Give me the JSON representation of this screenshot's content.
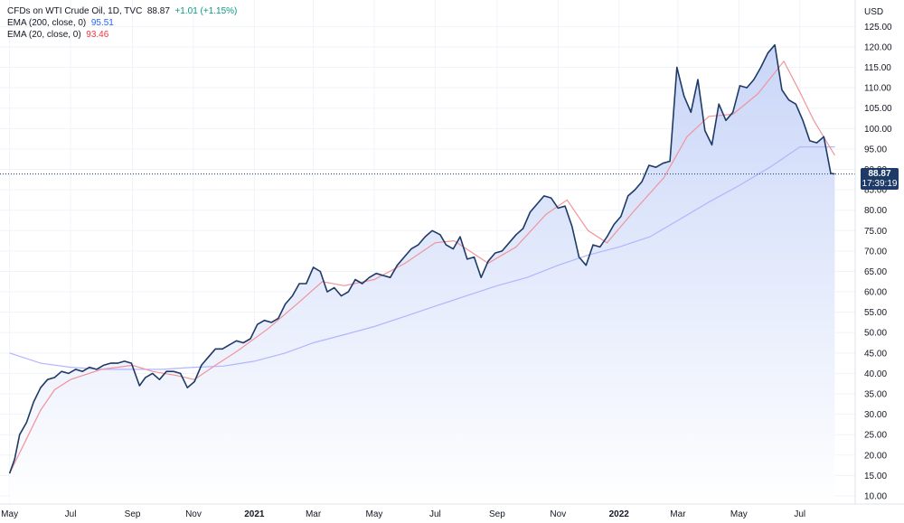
{
  "legend": {
    "symbol": "CFDs on WTI Crude Oil, 1D, TVC",
    "last": "88.87",
    "change": "+1.01 (+1.15%)",
    "ema200_label": "EMA (200, close, 0)",
    "ema200_value": "95.51",
    "ema20_label": "EMA (20, close, 0)",
    "ema20_value": "93.46"
  },
  "price_label": {
    "price": "88.87",
    "time": "17:39:19"
  },
  "colors": {
    "price_line": "#1e3a66",
    "area_top": "#c9d6f8",
    "area_bottom": "#ffffff",
    "ema200": "#b2b5ff",
    "ema20": "#f1949b",
    "grid": "#f0f3fa",
    "last_price_line": "#1e3a66"
  },
  "chart_data": {
    "type": "line",
    "title": "CFDs on WTI Crude Oil, 1D, TVC",
    "ylabel": "USD",
    "ylim": [
      8,
      131.5
    ],
    "y_ticks": [
      "10.00",
      "15.00",
      "20.00",
      "25.00",
      "30.00",
      "35.00",
      "40.00",
      "45.00",
      "50.00",
      "55.00",
      "60.00",
      "65.00",
      "70.00",
      "75.00",
      "80.00",
      "85.00",
      "90.00",
      "95.00",
      "100.00",
      "105.00",
      "110.00",
      "115.00",
      "120.00",
      "125.00"
    ],
    "x_ticks": [
      {
        "label": "May",
        "x": "2020-05",
        "year": false
      },
      {
        "label": "Jul",
        "x": "2020-07",
        "year": false
      },
      {
        "label": "Sep",
        "x": "2020-09",
        "year": false
      },
      {
        "label": "Nov",
        "x": "2020-11",
        "year": false
      },
      {
        "label": "2021",
        "x": "2021-01",
        "year": true
      },
      {
        "label": "Mar",
        "x": "2021-03",
        "year": false
      },
      {
        "label": "May",
        "x": "2021-05",
        "year": false
      },
      {
        "label": "Jul",
        "x": "2021-07",
        "year": false
      },
      {
        "label": "Sep",
        "x": "2021-09",
        "year": false
      },
      {
        "label": "Nov",
        "x": "2021-11",
        "year": false
      },
      {
        "label": "2022",
        "x": "2022-01",
        "year": true
      },
      {
        "label": "Mar",
        "x": "2022-03",
        "year": false
      },
      {
        "label": "May",
        "x": "2022-05",
        "year": false
      },
      {
        "label": "Jul",
        "x": "2022-07",
        "year": false
      }
    ],
    "series": [
      {
        "name": "CFDs on WTI Crude Oil",
        "x": [
          "2020-05-01",
          "2020-05-06",
          "2020-05-11",
          "2020-05-18",
          "2020-05-25",
          "2020-06-01",
          "2020-06-08",
          "2020-06-15",
          "2020-06-22",
          "2020-06-29",
          "2020-07-06",
          "2020-07-13",
          "2020-07-20",
          "2020-07-27",
          "2020-08-03",
          "2020-08-10",
          "2020-08-17",
          "2020-08-24",
          "2020-08-31",
          "2020-09-08",
          "2020-09-14",
          "2020-09-21",
          "2020-09-28",
          "2020-10-05",
          "2020-10-12",
          "2020-10-19",
          "2020-10-26",
          "2020-11-02",
          "2020-11-09",
          "2020-11-16",
          "2020-11-23",
          "2020-11-30",
          "2020-12-07",
          "2020-12-14",
          "2020-12-21",
          "2020-12-28",
          "2021-01-04",
          "2021-01-11",
          "2021-01-18",
          "2021-01-25",
          "2021-02-01",
          "2021-02-08",
          "2021-02-15",
          "2021-02-22",
          "2021-03-01",
          "2021-03-08",
          "2021-03-15",
          "2021-03-22",
          "2021-03-29",
          "2021-04-05",
          "2021-04-12",
          "2021-04-19",
          "2021-04-26",
          "2021-05-03",
          "2021-05-10",
          "2021-05-17",
          "2021-05-24",
          "2021-05-31",
          "2021-06-07",
          "2021-06-14",
          "2021-06-21",
          "2021-06-28",
          "2021-07-06",
          "2021-07-12",
          "2021-07-19",
          "2021-07-26",
          "2021-08-02",
          "2021-08-09",
          "2021-08-16",
          "2021-08-23",
          "2021-08-30",
          "2021-09-06",
          "2021-09-13",
          "2021-09-20",
          "2021-09-27",
          "2021-10-04",
          "2021-10-11",
          "2021-10-18",
          "2021-10-25",
          "2021-11-01",
          "2021-11-08",
          "2021-11-15",
          "2021-11-22",
          "2021-11-29",
          "2021-12-06",
          "2021-12-13",
          "2021-12-20",
          "2021-12-27",
          "2022-01-03",
          "2022-01-10",
          "2022-01-17",
          "2022-01-24",
          "2022-01-31",
          "2022-02-07",
          "2022-02-14",
          "2022-02-21",
          "2022-02-28",
          "2022-03-07",
          "2022-03-14",
          "2022-03-21",
          "2022-03-28",
          "2022-04-04",
          "2022-04-11",
          "2022-04-18",
          "2022-04-25",
          "2022-05-02",
          "2022-05-09",
          "2022-05-16",
          "2022-05-23",
          "2022-05-30",
          "2022-06-06",
          "2022-06-13",
          "2022-06-20",
          "2022-06-27",
          "2022-07-04",
          "2022-07-11",
          "2022-07-18",
          "2022-07-25",
          "2022-08-01",
          "2022-08-05"
        ],
        "y": [
          15.5,
          19.0,
          25.0,
          28.0,
          33.0,
          36.5,
          38.5,
          39.0,
          40.5,
          40.0,
          41.0,
          40.5,
          41.5,
          41.0,
          42.0,
          42.5,
          42.5,
          43.0,
          42.5,
          37.0,
          39.0,
          40.0,
          38.5,
          40.5,
          40.5,
          40.0,
          36.5,
          38.0,
          42.0,
          44.0,
          46.0,
          46.0,
          47.0,
          48.0,
          47.5,
          48.5,
          52.0,
          53.0,
          52.5,
          53.5,
          57.0,
          59.0,
          62.0,
          62.0,
          66.0,
          65.0,
          60.0,
          61.0,
          59.0,
          60.0,
          63.0,
          62.0,
          63.5,
          64.5,
          64.0,
          63.5,
          66.5,
          68.5,
          70.5,
          71.5,
          73.5,
          75.0,
          74.0,
          71.5,
          70.5,
          73.5,
          68.0,
          68.5,
          63.5,
          67.5,
          69.5,
          70.0,
          72.0,
          74.0,
          75.5,
          79.5,
          81.5,
          83.5,
          83.0,
          80.5,
          81.0,
          76.0,
          68.5,
          66.5,
          71.5,
          71.0,
          73.5,
          76.5,
          78.5,
          83.5,
          85.0,
          87.0,
          91.0,
          90.5,
          91.5,
          92.0,
          115.0,
          108.0,
          104.0,
          112.0,
          99.5,
          96.0,
          106.0,
          102.0,
          104.0,
          110.5,
          110.0,
          112.0,
          115.0,
          118.5,
          120.5,
          109.5,
          107.0,
          106.0,
          102.0,
          97.0,
          96.5,
          98.0,
          89.0,
          88.87
        ]
      },
      {
        "name": "EMA (200, close, 0)",
        "x": [
          "2020-05-01",
          "2020-06-01",
          "2020-07-01",
          "2020-08-01",
          "2020-09-01",
          "2020-10-01",
          "2020-11-01",
          "2020-12-01",
          "2021-01-01",
          "2021-02-01",
          "2021-03-01",
          "2021-04-01",
          "2021-05-01",
          "2021-06-01",
          "2021-07-01",
          "2021-08-01",
          "2021-09-01",
          "2021-10-01",
          "2021-11-01",
          "2021-12-01",
          "2022-01-01",
          "2022-02-01",
          "2022-03-01",
          "2022-04-01",
          "2022-05-01",
          "2022-06-01",
          "2022-07-01",
          "2022-08-05"
        ],
        "y": [
          45.0,
          42.5,
          41.5,
          41.0,
          41.0,
          41.0,
          41.5,
          41.8,
          43.0,
          45.0,
          47.5,
          49.5,
          51.5,
          54.0,
          56.5,
          59.0,
          61.5,
          63.5,
          66.5,
          69.0,
          71.0,
          73.5,
          77.5,
          82.0,
          86.0,
          90.5,
          95.5,
          95.51
        ]
      },
      {
        "name": "EMA (20, close, 0)",
        "x": [
          "2020-05-01",
          "2020-05-18",
          "2020-06-01",
          "2020-06-15",
          "2020-07-01",
          "2020-08-01",
          "2020-09-01",
          "2020-09-21",
          "2020-10-15",
          "2020-11-02",
          "2020-11-23",
          "2020-12-15",
          "2021-01-15",
          "2021-02-15",
          "2021-03-10",
          "2021-04-01",
          "2021-05-01",
          "2021-06-01",
          "2021-07-01",
          "2021-07-20",
          "2021-08-23",
          "2021-09-20",
          "2021-10-20",
          "2021-11-10",
          "2021-12-01",
          "2021-12-20",
          "2022-01-15",
          "2022-02-15",
          "2022-03-10",
          "2022-04-01",
          "2022-04-25",
          "2022-05-20",
          "2022-06-15",
          "2022-07-01",
          "2022-07-15",
          "2022-08-05"
        ],
        "y": [
          15.5,
          24.0,
          31.0,
          36.0,
          38.5,
          41.0,
          42.0,
          40.5,
          39.5,
          38.5,
          42.0,
          45.5,
          51.0,
          57.5,
          62.5,
          61.5,
          63.0,
          67.0,
          72.0,
          72.5,
          67.0,
          71.0,
          79.0,
          82.5,
          75.0,
          72.0,
          79.5,
          88.0,
          98.0,
          103.0,
          103.5,
          108.5,
          116.5,
          109.0,
          102.0,
          93.46
        ]
      }
    ],
    "last_price": 88.87
  }
}
